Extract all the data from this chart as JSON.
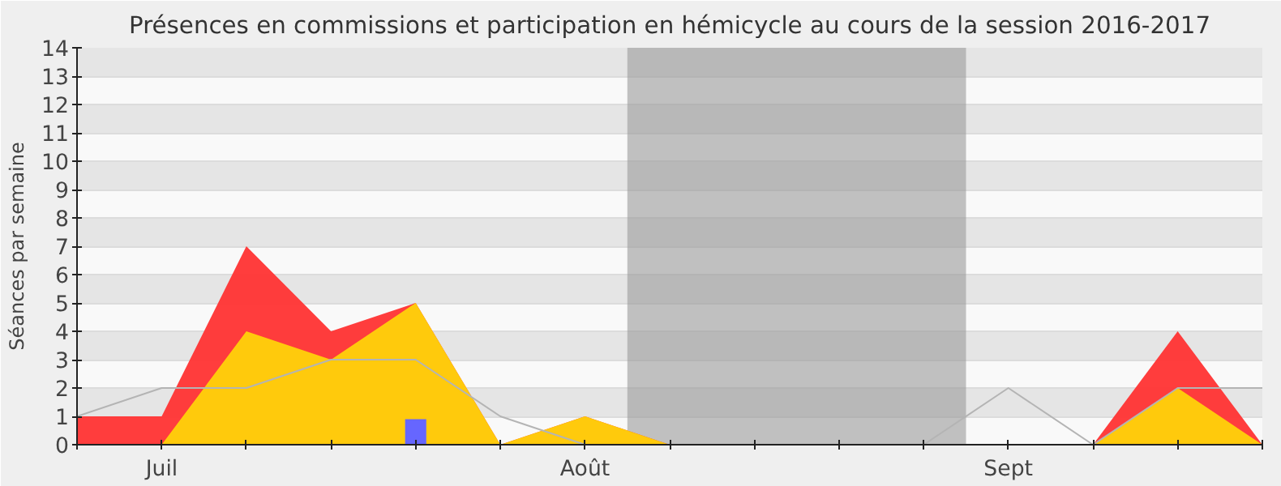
{
  "chart_data": {
    "type": "area",
    "title": "Présences en commissions et participation en hémicycle au cours de la session 2016-2017",
    "ylabel": "Séances par semaine",
    "categories": [
      null,
      "Juil",
      null,
      null,
      null,
      null,
      "Août",
      null,
      null,
      null,
      null,
      "Sept",
      null,
      null,
      null
    ],
    "ylim": [
      0,
      14
    ],
    "yticks": [
      0,
      1,
      2,
      3,
      4,
      5,
      6,
      7,
      8,
      9,
      10,
      11,
      12,
      13,
      14
    ],
    "grid": "y",
    "series": [
      {
        "color": "#ff3333",
        "values": [
          1,
          1,
          7,
          4,
          5,
          0,
          1,
          0,
          0,
          0,
          0,
          0,
          0,
          4,
          0
        ]
      },
      {
        "color": "#ffd20a",
        "values": [
          0,
          0,
          4,
          3,
          5,
          0,
          1,
          0,
          0,
          0,
          0,
          0,
          0,
          2,
          0
        ]
      },
      {
        "type": "line",
        "color": "#b4b4b4",
        "values": [
          1,
          2,
          2,
          3,
          3,
          1,
          0,
          0,
          0,
          0,
          0,
          2,
          0,
          2,
          2
        ]
      },
      {
        "type": "bar",
        "color": "#6666ff",
        "values": [
          null,
          null,
          null,
          null,
          0.9,
          null,
          null,
          null,
          null,
          null,
          null,
          null,
          null,
          null,
          null
        ]
      }
    ]
  }
}
